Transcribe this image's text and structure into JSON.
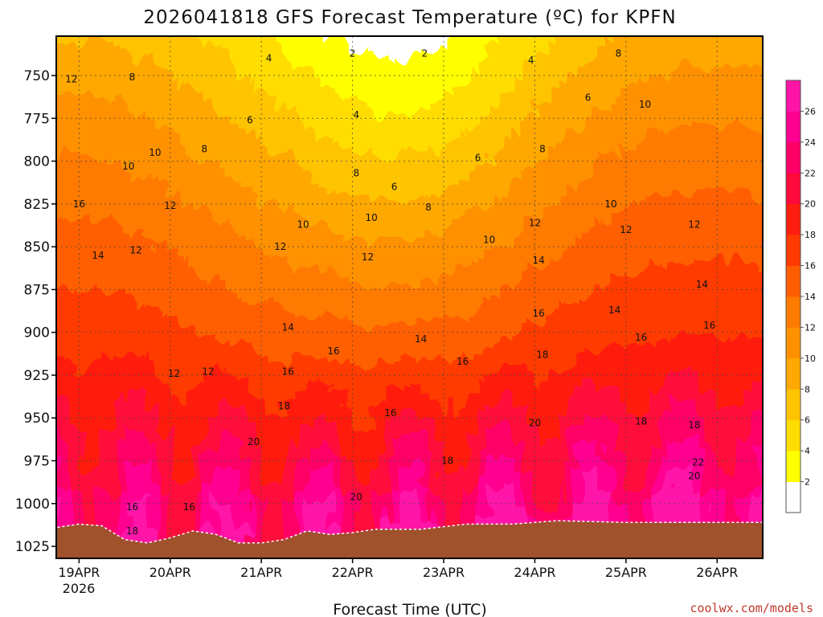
{
  "chart_data": {
    "type": "heatmap",
    "subtype": "filled-contour time-height cross section",
    "title": "2026041818 GFS Forecast Temperature (ºC) for KPFN",
    "xlabel": "Forecast Time (UTC)",
    "ylabel": "",
    "x_ticks": [
      "19APR",
      "20APR",
      "21APR",
      "22APR",
      "23APR",
      "24APR",
      "25APR",
      "26APR"
    ],
    "x_tick_hours": [
      6,
      30,
      54,
      78,
      102,
      126,
      150,
      174
    ],
    "x_year_label": "2026",
    "x_range_hours": [
      0,
      186
    ],
    "y_ticks": [
      750,
      775,
      800,
      825,
      850,
      875,
      900,
      925,
      950,
      975,
      1000,
      1025
    ],
    "y_range_hpa": [
      727,
      1032
    ],
    "contour_levels": [
      2,
      4,
      6,
      8,
      10,
      12,
      14,
      16,
      18,
      20,
      22,
      24,
      26
    ],
    "colorbar_labels": [
      "2",
      "4",
      "6",
      "8",
      "10",
      "12",
      "14",
      "16",
      "18",
      "20",
      "22",
      "24",
      "26"
    ],
    "colorbar_colors": [
      "#ffffff",
      "#ffff00",
      "#ffdd00",
      "#ffc400",
      "#ffa800",
      "#ff9100",
      "#ff7a00",
      "#ff5e00",
      "#ff3a00",
      "#ff1e10",
      "#ff0a3a",
      "#ff0066",
      "#ff0090",
      "#ff14a8"
    ],
    "ground_color": "#a0522d",
    "surface_pressure_hpa": [
      1014,
      1012,
      1013,
      1021,
      1023,
      1020,
      1016,
      1018,
      1023,
      1023,
      1021,
      1016,
      1018,
      1017,
      1015,
      1015,
      1012,
      1012,
      1010,
      1011,
      1011,
      1011
    ],
    "sample_hours": [
      0,
      6,
      12,
      18,
      24,
      30,
      36,
      42,
      48,
      54,
      60,
      66,
      72,
      78,
      84,
      96,
      108,
      120,
      132,
      150,
      168,
      186
    ],
    "isotherm_labels": [
      {
        "text": "2",
        "hour": 78,
        "hpa": 737
      },
      {
        "text": "2",
        "hour": 97,
        "hpa": 737
      },
      {
        "text": "4",
        "hour": 56,
        "hpa": 740
      },
      {
        "text": "4",
        "hour": 125,
        "hpa": 741
      },
      {
        "text": "4",
        "hour": 79,
        "hpa": 773
      },
      {
        "text": "6",
        "hour": 51,
        "hpa": 776
      },
      {
        "text": "6",
        "hour": 140,
        "hpa": 763
      },
      {
        "text": "6",
        "hour": 89,
        "hpa": 815
      },
      {
        "text": "6",
        "hour": 111,
        "hpa": 798
      },
      {
        "text": "8",
        "hour": 20,
        "hpa": 751
      },
      {
        "text": "8",
        "hour": 39,
        "hpa": 793
      },
      {
        "text": "8",
        "hour": 148,
        "hpa": 737
      },
      {
        "text": "8",
        "hour": 79,
        "hpa": 807
      },
      {
        "text": "8",
        "hour": 128,
        "hpa": 793
      },
      {
        "text": "8",
        "hour": 98,
        "hpa": 827
      },
      {
        "text": "10",
        "hour": 26,
        "hpa": 795
      },
      {
        "text": "10",
        "hour": 19,
        "hpa": 803
      },
      {
        "text": "10",
        "hour": 155,
        "hpa": 767
      },
      {
        "text": "10",
        "hour": 146,
        "hpa": 825
      },
      {
        "text": "10",
        "hour": 65,
        "hpa": 837
      },
      {
        "text": "10",
        "hour": 83,
        "hpa": 833
      },
      {
        "text": "10",
        "hour": 114,
        "hpa": 846
      },
      {
        "text": "12",
        "hour": 4,
        "hpa": 752
      },
      {
        "text": "12",
        "hour": 30,
        "hpa": 826
      },
      {
        "text": "12",
        "hour": 21,
        "hpa": 852
      },
      {
        "text": "12",
        "hour": 59,
        "hpa": 850
      },
      {
        "text": "12",
        "hour": 82,
        "hpa": 856
      },
      {
        "text": "12",
        "hour": 126,
        "hpa": 836
      },
      {
        "text": "12",
        "hour": 150,
        "hpa": 840
      },
      {
        "text": "12",
        "hour": 168,
        "hpa": 837
      },
      {
        "text": "12",
        "hour": 31,
        "hpa": 924
      },
      {
        "text": "12",
        "hour": 40,
        "hpa": 923
      },
      {
        "text": "14",
        "hour": 11,
        "hpa": 855
      },
      {
        "text": "14",
        "hour": 61,
        "hpa": 897
      },
      {
        "text": "14",
        "hour": 96,
        "hpa": 904
      },
      {
        "text": "14",
        "hour": 127,
        "hpa": 858
      },
      {
        "text": "14",
        "hour": 147,
        "hpa": 887
      },
      {
        "text": "14",
        "hour": 170,
        "hpa": 872
      },
      {
        "text": "16",
        "hour": 6,
        "hpa": 825
      },
      {
        "text": "16",
        "hour": 73,
        "hpa": 911
      },
      {
        "text": "16",
        "hour": 61,
        "hpa": 923
      },
      {
        "text": "16",
        "hour": 107,
        "hpa": 917
      },
      {
        "text": "16",
        "hour": 127,
        "hpa": 889
      },
      {
        "text": "16",
        "hour": 154,
        "hpa": 903
      },
      {
        "text": "16",
        "hour": 172,
        "hpa": 896
      },
      {
        "text": "16",
        "hour": 88,
        "hpa": 947
      },
      {
        "text": "16",
        "hour": 20,
        "hpa": 1002
      },
      {
        "text": "16",
        "hour": 35,
        "hpa": 1002
      },
      {
        "text": "18",
        "hour": 60,
        "hpa": 943
      },
      {
        "text": "18",
        "hour": 128,
        "hpa": 913
      },
      {
        "text": "18",
        "hour": 154,
        "hpa": 952
      },
      {
        "text": "18",
        "hour": 168,
        "hpa": 954
      },
      {
        "text": "18",
        "hour": 103,
        "hpa": 975
      },
      {
        "text": "18",
        "hour": 20,
        "hpa": 1016
      },
      {
        "text": "20",
        "hour": 52,
        "hpa": 964
      },
      {
        "text": "20",
        "hour": 126,
        "hpa": 953
      },
      {
        "text": "20",
        "hour": 168,
        "hpa": 984
      },
      {
        "text": "20",
        "hour": 79,
        "hpa": 996
      },
      {
        "text": "22",
        "hour": 169,
        "hpa": 976
      }
    ],
    "credit": "coolwx.com/models"
  }
}
